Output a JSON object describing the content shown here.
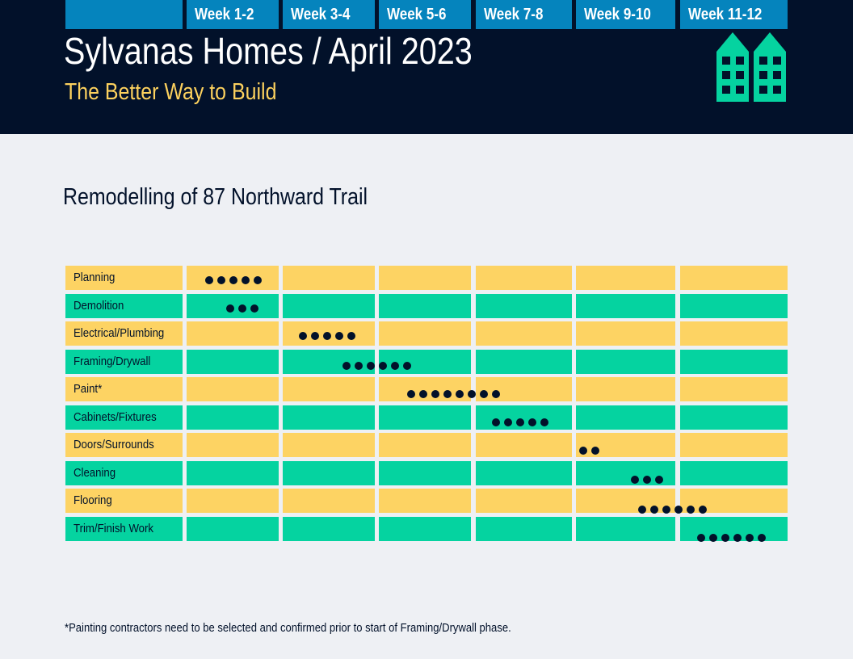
{
  "header": {
    "title": "Sylvanas Homes / April 2023",
    "subtitle": "The Better Way to Build",
    "logo_icon": "buildings-icon"
  },
  "project_title": "Remodelling of 87 Northward Trail",
  "weeks": [
    "Week 1-2",
    "Week 3-4",
    "Week 5-6",
    "Week 7-8",
    "Week 9-10",
    "Week 11-12"
  ],
  "tasks": [
    {
      "name": "Planning",
      "dots": 5
    },
    {
      "name": "Demolition",
      "dots": 3
    },
    {
      "name": "Electrical/Plumbing",
      "dots": 5
    },
    {
      "name": "Framing/Drywall",
      "dots": 6
    },
    {
      "name": "Paint*",
      "dots": 8
    },
    {
      "name": "Cabinets/Fixtures",
      "dots": 5
    },
    {
      "name": "Doors/Surrounds",
      "dots": 2
    },
    {
      "name": "Cleaning",
      "dots": 3
    },
    {
      "name": "Flooring",
      "dots": 6
    },
    {
      "name": "Trim/Finish Work",
      "dots": 6
    }
  ],
  "colors": {
    "navy": "#02112a",
    "header_blue": "#0584bd",
    "yellow": "#fdd363",
    "green": "#05d3a0",
    "accent": "#fcd15e"
  },
  "footnote": "*Painting contractors need to be selected and confirmed prior to start of Framing/Drywall phase."
}
